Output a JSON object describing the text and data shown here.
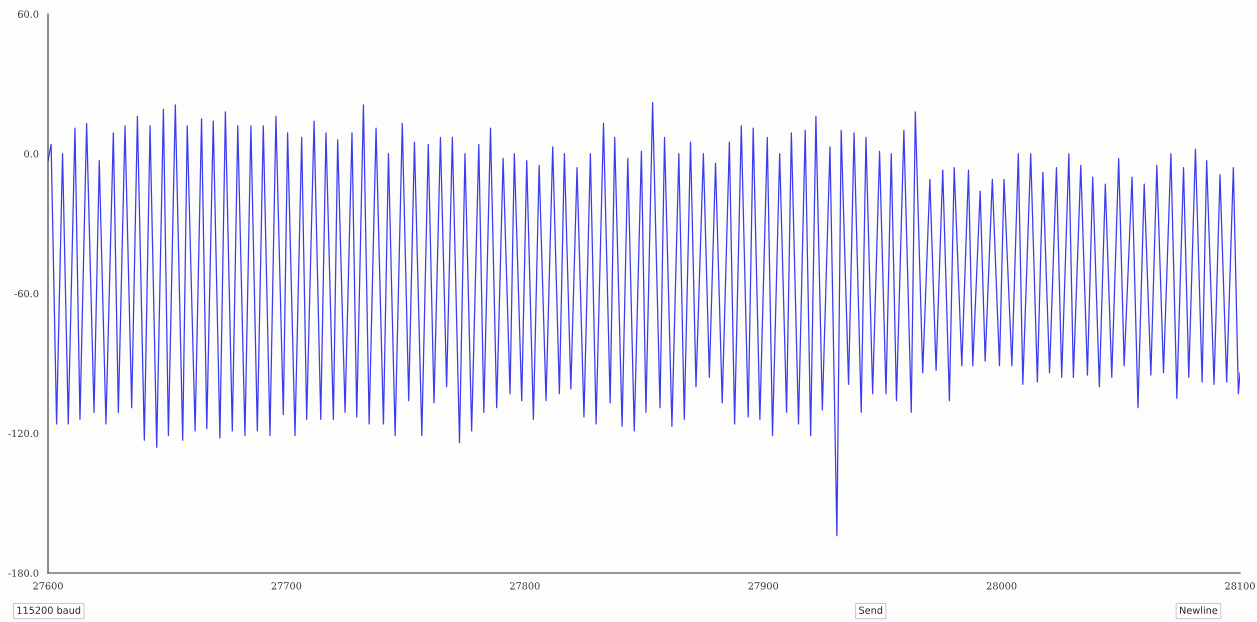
{
  "chart_data": {
    "type": "line",
    "xlim": [
      27600,
      28100
    ],
    "xticks": [
      27600,
      27700,
      27800,
      27900,
      28000,
      28100
    ],
    "ylim": [
      -180,
      60
    ],
    "yticks": [
      {
        "value": 60,
        "label": "60.0"
      },
      {
        "value": 0,
        "label": "0.0"
      },
      {
        "value": -60,
        "label": "-60.0"
      },
      {
        "value": -120,
        "label": "-120.0"
      },
      {
        "value": -180,
        "label": "-180.0"
      }
    ],
    "grid": false,
    "marker": "none",
    "line_style": "solid",
    "annotations": [
      "115200 baud",
      "Send",
      "Newline"
    ],
    "series": [
      {
        "color": "#3b3bf0",
        "x": [
          27600,
          27601.3,
          27603.6,
          27606.1,
          27608.5,
          27611.3,
          27613.4,
          27616.2,
          27619.3,
          27621.5,
          27624.3,
          27627.4,
          27629.5,
          27632.3,
          27635.1,
          27637.5,
          27640.4,
          27642.8,
          27645.6,
          27648.4,
          27650.5,
          27653.4,
          27656.5,
          27658.4,
          27661.7,
          27664.4,
          27666.6,
          27669.3,
          27672.1,
          27674.4,
          27677.3,
          27679.6,
          27682.6,
          27685.1,
          27687.8,
          27690.3,
          27693.1,
          27695.6,
          27698.7,
          27700.5,
          27703.6,
          27706.4,
          27708.5,
          27711.6,
          27714.4,
          27716.6,
          27719.7,
          27721.5,
          27724.6,
          27727.5,
          27729.5,
          27732.3,
          27734.7,
          27737.6,
          27740.7,
          27742.8,
          27745.6,
          27748.6,
          27751.3,
          27753.7,
          27756.8,
          27759.5,
          27761.9,
          27764.6,
          27767.2,
          27769.6,
          27772.6,
          27774.9,
          27777.7,
          27780.7,
          27782.8,
          27785.6,
          27788.2,
          27790.9,
          27793.8,
          27795.6,
          27798.7,
          27800.8,
          27803.6,
          27806.0,
          27808.9,
          27811.7,
          27814.5,
          27816.6,
          27819.3,
          27821.9,
          27824.8,
          27827.5,
          27829.9,
          27833.0,
          27835.8,
          27837.7,
          27840.8,
          27843.2,
          27845.9,
          27848.9,
          27850.8,
          27853.6,
          27856.7,
          27858.6,
          27861.7,
          27864.6,
          27866.9,
          27869.5,
          27871.8,
          27874.9,
          27877.4,
          27880.0,
          27882.8,
          27885.8,
          27888.0,
          27890.8,
          27893.7,
          27895.8,
          27898.6,
          27901.7,
          27903.9,
          27906.9,
          27909.8,
          27911.8,
          27914.8,
          27917.6,
          27919.9,
          27922.1,
          27924.8,
          27928.0,
          27930.9,
          27932.7,
          27935.8,
          27938.1,
          27941.1,
          27943.1,
          27945.9,
          27948.8,
          27951.5,
          27953.7,
          27955.9,
          27959.0,
          27962.1,
          27963.8,
          27966.9,
          27969.9,
          27972.5,
          27975.3,
          27978.1,
          27980.1,
          27983.3,
          27986.1,
          27987.9,
          27991.0,
          27993.1,
          27996.1,
          27999.1,
          28001.0,
          28004.3,
          28007.0,
          28008.9,
          28012.2,
          28015.0,
          28017.3,
          28020.1,
          28023.0,
          28025.2,
          28028.2,
          28030.1,
          28033.2,
          28036.0,
          28038.2,
          28041.0,
          28043.5,
          28046.2,
          28049.1,
          28051.4,
          28054.7,
          28057.2,
          28059.8,
          28062.6,
          28065.1,
          28067.9,
          28071.0,
          28073.5,
          28076.3,
          28078.5,
          28081.3,
          28084.1,
          28086.0,
          28089.1,
          28091.6,
          28094.4,
          28097.2,
          28099.3,
          28100
        ],
        "values": [
          -3,
          4,
          -116,
          0,
          -116,
          11,
          -114,
          13,
          -111,
          -3,
          -116,
          9,
          -111,
          12,
          -109,
          16,
          -123,
          12,
          -126,
          19,
          -121,
          21,
          -123,
          12,
          -119,
          15,
          -118,
          14,
          -122,
          18,
          -119,
          12,
          -121,
          12,
          -119,
          12,
          -121,
          16,
          -112,
          9,
          -121,
          7,
          -114,
          14,
          -114,
          9,
          -114,
          6,
          -111,
          9,
          -113,
          21,
          -116,
          11,
          -116,
          0,
          -121,
          13,
          -106,
          5,
          -121,
          4,
          -107,
          7,
          -100,
          7,
          -124,
          0,
          -119,
          4,
          -111,
          11,
          -109,
          -2,
          -103,
          0,
          -106,
          -3,
          -114,
          -5,
          -106,
          3,
          -103,
          0,
          -101,
          -6,
          -113,
          0,
          -116,
          13,
          -107,
          7,
          -117,
          -2,
          -119,
          1,
          -111,
          22,
          -109,
          7,
          -117,
          0,
          -114,
          5,
          -100,
          0,
          -96,
          -4,
          -107,
          5,
          -116,
          12,
          -113,
          11,
          -114,
          7,
          -121,
          0,
          -111,
          9,
          -116,
          10,
          -121,
          16,
          -110,
          3,
          -164,
          10,
          -99,
          9,
          -111,
          7,
          -103,
          1,
          -103,
          0,
          -106,
          10,
          -111,
          18,
          -94,
          -11,
          -93,
          -7,
          -106,
          -6,
          -91,
          -7,
          -91,
          -16,
          -89,
          -11,
          -91,
          -11,
          -91,
          0,
          -99,
          0,
          -98,
          -8,
          -94,
          -6,
          -96,
          0,
          -96,
          -5,
          -95,
          -10,
          -100,
          -13,
          -96,
          -2,
          -91,
          -10,
          -109,
          -13,
          -95,
          -5,
          -94,
          0,
          -105,
          -6,
          -96,
          2,
          -98,
          -3,
          -99,
          -9,
          -98,
          -6,
          -103,
          -94
        ]
      }
    ]
  }
}
